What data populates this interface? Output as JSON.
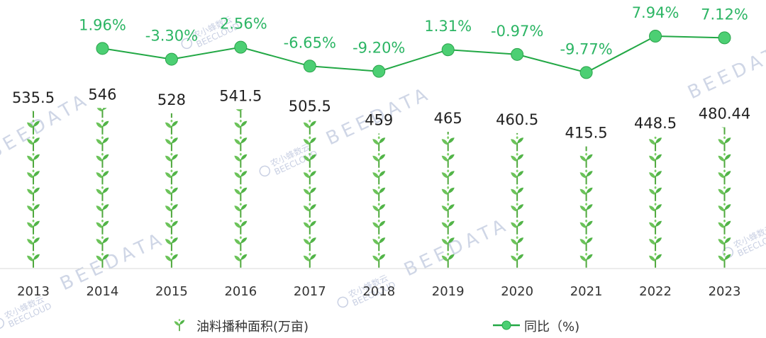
{
  "chart_data": {
    "type": "bar",
    "categories": [
      "2013",
      "2014",
      "2015",
      "2016",
      "2017",
      "2018",
      "2019",
      "2020",
      "2021",
      "2022",
      "2023"
    ],
    "series": [
      {
        "name": "油料播种面积(万亩)",
        "type": "pictorial-bar",
        "values": [
          535.5,
          546,
          528,
          541.5,
          505.5,
          459,
          465,
          460.5,
          415.5,
          448.5,
          480.44
        ],
        "labels": [
          "535.5",
          "546",
          "528",
          "541.5",
          "505.5",
          "459",
          "465",
          "460.5",
          "415.5",
          "448.5",
          "480.44"
        ],
        "icon": "sprout-icon",
        "color": "#5cc45c"
      },
      {
        "name": "同比（%)",
        "type": "line",
        "values": [
          null,
          1.96,
          -3.3,
          2.56,
          -6.65,
          -9.2,
          1.31,
          -0.97,
          -9.77,
          7.94,
          7.12
        ],
        "labels": [
          "",
          "1.96%",
          "-3.30%",
          "2.56%",
          "-6.65%",
          "-9.20%",
          "1.31%",
          "-0.97%",
          "-9.77%",
          "7.94%",
          "7.12%"
        ],
        "color": "#22a845",
        "marker_color": "#4ccf73"
      }
    ],
    "legend_placement": "bottom",
    "grid": false
  },
  "legend": {
    "bar_label": "油料播种面积(万亩)",
    "line_label": "同比（%)"
  },
  "watermark": {
    "text": "BEEDATA",
    "brand": "农小蜂数云",
    "brand_sub": "BEECLOUD"
  },
  "colors": {
    "bar": "#5cc45c",
    "line": "#22a845",
    "marker": "#4ccf73",
    "pct_label": "#2cb564"
  }
}
